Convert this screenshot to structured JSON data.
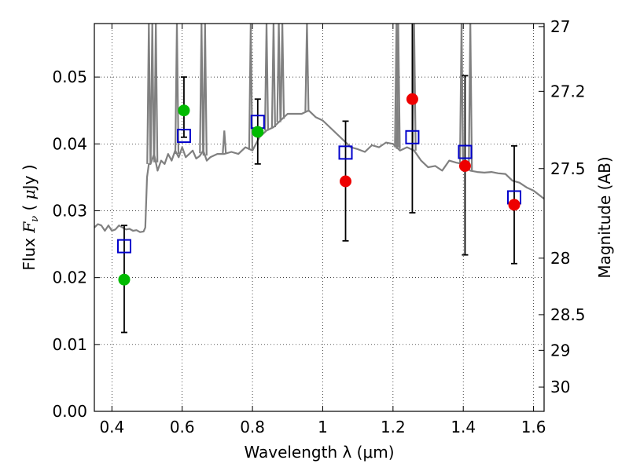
{
  "chart_data": {
    "type": "scatter",
    "xlabel": "Wavelength  λ (μm)",
    "ylabel": "Flux  Fν  ( μJy )",
    "ylabel_parts": {
      "pre": "Flux  ",
      "var": "F",
      "sub": "ν",
      "mid": "  ( ",
      "mu": "μ",
      "post": "Jy )"
    },
    "y2label": "Magnitude (AB)",
    "xlim": [
      0.35,
      1.63
    ],
    "ylim": [
      0.0,
      0.058
    ],
    "grid": true,
    "x_ticks": [
      0.4,
      0.6,
      0.8,
      1.0,
      1.2,
      1.4,
      1.6
    ],
    "x_tick_labels": [
      "0.4",
      "0.6",
      "0.8",
      "1",
      "1.2",
      "1.4",
      "1.6"
    ],
    "y_ticks": [
      0.0,
      0.01,
      0.02,
      0.03,
      0.04,
      0.05
    ],
    "y_tick_labels": [
      "0.00",
      "0.01",
      "0.02",
      "0.03",
      "0.04",
      "0.05"
    ],
    "y2_ticks": [
      27,
      27.2,
      27.5,
      28,
      28.5,
      29,
      30
    ],
    "y2_tick_labels": [
      "27",
      "27.2",
      "27.5",
      "28",
      "28.5",
      "29",
      "30"
    ],
    "colors": {
      "model": "#808080",
      "observed_optical": "#00bb00",
      "observed_nir": "#ee0000",
      "model_flux": "#0000cc",
      "errorbar": "#000000"
    },
    "series": [
      {
        "kind": "spectrum",
        "x": [
          0.35,
          0.36,
          0.37,
          0.38,
          0.39,
          0.4,
          0.41,
          0.42,
          0.43,
          0.44,
          0.45,
          0.46,
          0.47,
          0.48,
          0.49,
          0.495,
          0.5,
          0.505,
          0.51,
          0.52,
          0.53,
          0.54,
          0.55,
          0.56,
          0.57,
          0.58,
          0.59,
          0.6,
          0.61,
          0.62,
          0.63,
          0.64,
          0.65,
          0.66,
          0.67,
          0.68,
          0.7,
          0.72,
          0.74,
          0.76,
          0.78,
          0.8,
          0.82,
          0.84,
          0.86,
          0.88,
          0.9,
          0.92,
          0.94,
          0.96,
          0.98,
          1.0,
          1.02,
          1.04,
          1.06,
          1.08,
          1.1,
          1.12,
          1.14,
          1.16,
          1.18,
          1.2,
          1.22,
          1.24,
          1.26,
          1.28,
          1.3,
          1.32,
          1.34,
          1.36,
          1.38,
          1.4,
          1.42,
          1.44,
          1.46,
          1.48,
          1.5,
          1.52,
          1.54,
          1.56,
          1.58,
          1.6,
          1.62,
          1.63
        ],
        "y": [
          0.0275,
          0.028,
          0.0278,
          0.027,
          0.0278,
          0.027,
          0.0272,
          0.0278,
          0.0275,
          0.0272,
          0.0273,
          0.027,
          0.0271,
          0.0268,
          0.0269,
          0.0275,
          0.035,
          0.037,
          0.037,
          0.0385,
          0.036,
          0.0375,
          0.037,
          0.0385,
          0.0375,
          0.039,
          0.038,
          0.0395,
          0.038,
          0.0385,
          0.039,
          0.0378,
          0.0382,
          0.039,
          0.0375,
          0.038,
          0.0385,
          0.0385,
          0.0388,
          0.0385,
          0.0395,
          0.039,
          0.041,
          0.042,
          0.0425,
          0.0435,
          0.0445,
          0.0445,
          0.0445,
          0.045,
          0.044,
          0.0435,
          0.0425,
          0.0415,
          0.0405,
          0.0395,
          0.0392,
          0.0388,
          0.0398,
          0.0395,
          0.0402,
          0.04,
          0.039,
          0.0395,
          0.039,
          0.0375,
          0.0365,
          0.0367,
          0.036,
          0.0375,
          0.0372,
          0.037,
          0.036,
          0.0358,
          0.0357,
          0.0358,
          0.0356,
          0.0355,
          0.0345,
          0.0342,
          0.0335,
          0.033,
          0.0322,
          0.0318
        ]
      },
      {
        "kind": "spectrum-lines",
        "x": [
          0.505,
          0.515,
          0.525,
          0.585,
          0.655,
          0.665,
          0.72,
          0.795,
          0.84,
          0.86,
          0.875,
          0.885,
          0.955,
          1.21,
          1.215,
          1.26,
          1.395,
          1.42
        ],
        "y_top": [
          0.058,
          0.058,
          0.058,
          0.058,
          0.058,
          0.058,
          0.042,
          0.058,
          0.058,
          0.058,
          0.058,
          0.058,
          0.058,
          0.058,
          0.058,
          0.058,
          0.058,
          0.058
        ]
      },
      {
        "kind": "observed",
        "name_class": "optical",
        "x": [
          0.435,
          0.605,
          0.815
        ],
        "y": [
          0.0197,
          0.045,
          0.0418
        ],
        "yerr_lo": [
          0.0118,
          0.041,
          0.037
        ],
        "yerr_hi": [
          0.0278,
          0.05,
          0.0467
        ]
      },
      {
        "kind": "observed",
        "name_class": "nir",
        "x": [
          1.065,
          1.255,
          1.405,
          1.545
        ],
        "y": [
          0.0344,
          0.0467,
          0.0367,
          0.0309
        ],
        "yerr_lo": [
          0.0255,
          0.0297,
          0.0234,
          0.0221
        ],
        "yerr_hi": [
          0.0434,
          0.058,
          0.0502,
          0.0397
        ]
      },
      {
        "kind": "model-points",
        "x": [
          0.435,
          0.605,
          0.815,
          1.065,
          1.255,
          1.405,
          1.545
        ],
        "y": [
          0.0247,
          0.0412,
          0.0433,
          0.0387,
          0.041,
          0.0388,
          0.032
        ]
      }
    ]
  }
}
